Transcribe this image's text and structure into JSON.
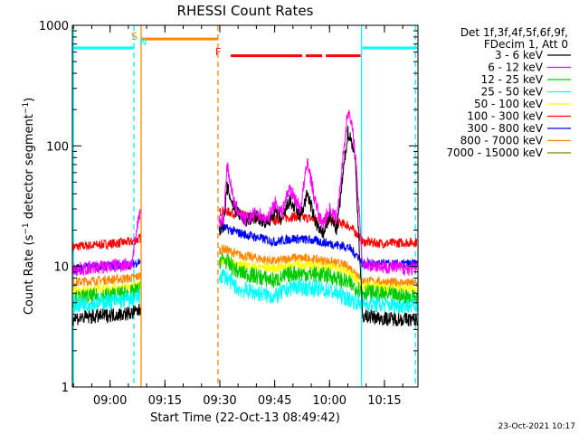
{
  "chart_data": {
    "type": "line",
    "title": "RHESSI Count Rates",
    "xlabel": "Start Time (22-Oct-13 08:49:42)",
    "ylabel": "Count Rate (s⁻¹ detector segment⁻¹)",
    "ylabel_parts": [
      "Count Rate (s",
      "−1",
      " detector segment",
      "−1",
      ")"
    ],
    "y_scale": "log",
    "ylim": [
      1,
      1000
    ],
    "xlim": [
      "08:49:42",
      "10:24:10"
    ],
    "x_ticks": [
      "09:00",
      "09:15",
      "09:30",
      "09:45",
      "10:00",
      "10:15"
    ],
    "y_ticks": [
      "1",
      "10",
      "100",
      "1000"
    ],
    "grid": false,
    "legend_position": "right",
    "legend_header": [
      "Det 1f,3f,4f,5f,6f,9f,",
      "FDecim 1, Att 0"
    ],
    "series": [
      {
        "name": "3 - 6 keV",
        "color": "#000000",
        "points": [
          [
            "08:50",
            3.7
          ],
          [
            "09:02",
            4.0
          ],
          [
            "09:06",
            4.1
          ],
          [
            "09:08",
            4.3
          ],
          [
            "09:31",
            22
          ],
          [
            "09:32",
            45
          ],
          [
            "09:34",
            30
          ],
          [
            "09:37",
            24
          ],
          [
            "09:40",
            26
          ],
          [
            "09:43",
            22
          ],
          [
            "09:45",
            29
          ],
          [
            "09:47",
            24
          ],
          [
            "09:49",
            35
          ],
          [
            "09:52",
            26
          ],
          [
            "09:54",
            40
          ],
          [
            "09:56",
            24
          ],
          [
            "09:58",
            18
          ],
          [
            "10:00",
            26
          ],
          [
            "10:02",
            20
          ],
          [
            "10:05",
            130
          ],
          [
            "10:06",
            110
          ],
          [
            "10:07",
            80
          ],
          [
            "10:09",
            3.9
          ],
          [
            "10:15",
            3.7
          ],
          [
            "10:25",
            3.6
          ]
        ]
      },
      {
        "name": "6 - 12 keV",
        "color": "#ff00ff",
        "points": [
          [
            "08:50",
            9.4
          ],
          [
            "09:06",
            10.5
          ],
          [
            "09:08",
            28
          ],
          [
            "09:31",
            24
          ],
          [
            "09:32",
            70
          ],
          [
            "09:34",
            32
          ],
          [
            "09:37",
            24
          ],
          [
            "09:40",
            28
          ],
          [
            "09:43",
            24
          ],
          [
            "09:45",
            34
          ],
          [
            "09:47",
            28
          ],
          [
            "09:49",
            45
          ],
          [
            "09:52",
            30
          ],
          [
            "09:54",
            75
          ],
          [
            "09:56",
            35
          ],
          [
            "09:58",
            22
          ],
          [
            "10:00",
            30
          ],
          [
            "10:02",
            25
          ],
          [
            "10:05",
            200
          ],
          [
            "10:06",
            150
          ],
          [
            "10:07",
            90
          ],
          [
            "10:09",
            10.5
          ],
          [
            "10:15",
            10
          ],
          [
            "10:25",
            9.4
          ]
        ]
      },
      {
        "name": "12 - 25 keV",
        "color": "#00cc00",
        "points": [
          [
            "08:50",
            5.4
          ],
          [
            "09:06",
            6.0
          ],
          [
            "09:08",
            6.4
          ],
          [
            "09:31",
            11.5
          ],
          [
            "09:35",
            9.0
          ],
          [
            "09:45",
            7.6
          ],
          [
            "09:50",
            8.8
          ],
          [
            "09:55",
            8.6
          ],
          [
            "10:00",
            8.4
          ],
          [
            "10:05",
            7.3
          ],
          [
            "10:08",
            6.5
          ],
          [
            "10:09",
            6.2
          ],
          [
            "10:15",
            5.8
          ],
          [
            "10:25",
            5.5
          ]
        ]
      },
      {
        "name": "25 - 50 keV",
        "color": "#00ffff",
        "points": [
          [
            "08:50",
            4.8
          ],
          [
            "09:06",
            5.3
          ],
          [
            "09:08",
            5.6
          ],
          [
            "09:31",
            8.5
          ],
          [
            "09:35",
            6.5
          ],
          [
            "09:45",
            5.6
          ],
          [
            "09:50",
            6.8
          ],
          [
            "09:55",
            6.6
          ],
          [
            "10:00",
            6.3
          ],
          [
            "10:05",
            5.4
          ],
          [
            "10:08",
            5.0
          ],
          [
            "10:09",
            4.9
          ],
          [
            "10:15",
            4.8
          ],
          [
            "10:25",
            4.7
          ]
        ]
      },
      {
        "name": "50 - 100 keV",
        "color": "#ffff00",
        "points": [
          [
            "08:50",
            6.3
          ],
          [
            "09:06",
            6.8
          ],
          [
            "09:08",
            7.0
          ],
          [
            "09:31",
            11.2
          ],
          [
            "09:35",
            10.4
          ],
          [
            "09:45",
            9.6
          ],
          [
            "09:50",
            10.4
          ],
          [
            "09:55",
            10.2
          ],
          [
            "10:00",
            10.0
          ],
          [
            "10:05",
            9.0
          ],
          [
            "10:08",
            7.4
          ],
          [
            "10:09",
            7.0
          ],
          [
            "10:15",
            6.7
          ],
          [
            "10:25",
            6.5
          ]
        ]
      },
      {
        "name": "100 - 300 keV",
        "color": "#ff0000",
        "points": [
          [
            "08:50",
            14.5
          ],
          [
            "09:06",
            16
          ],
          [
            "09:08",
            17
          ],
          [
            "09:31",
            29
          ],
          [
            "09:35",
            27
          ],
          [
            "09:45",
            24
          ],
          [
            "09:50",
            26
          ],
          [
            "09:55",
            25
          ],
          [
            "10:00",
            24
          ],
          [
            "10:05",
            22
          ],
          [
            "10:08",
            18
          ],
          [
            "10:09",
            16
          ],
          [
            "10:15",
            15.5
          ],
          [
            "10:25",
            16
          ]
        ]
      },
      {
        "name": "300 - 800 keV",
        "color": "#0000ff",
        "points": [
          [
            "08:50",
            9.6
          ],
          [
            "09:06",
            10.4
          ],
          [
            "09:08",
            11
          ],
          [
            "09:31",
            21
          ],
          [
            "09:35",
            19
          ],
          [
            "09:45",
            16
          ],
          [
            "09:50",
            17
          ],
          [
            "09:55",
            16.5
          ],
          [
            "10:00",
            15.5
          ],
          [
            "10:05",
            14.5
          ],
          [
            "10:08",
            12
          ],
          [
            "10:09",
            10.5
          ],
          [
            "10:15",
            10.4
          ],
          [
            "10:25",
            10.5
          ]
        ]
      },
      {
        "name": "800 - 7000 keV",
        "color": "#ff8800",
        "points": [
          [
            "08:50",
            7.4
          ],
          [
            "09:06",
            8.0
          ],
          [
            "09:08",
            8.3
          ],
          [
            "09:31",
            14
          ],
          [
            "09:35",
            12.5
          ],
          [
            "09:45",
            11
          ],
          [
            "09:50",
            11.8
          ],
          [
            "09:55",
            11.5
          ],
          [
            "10:00",
            11
          ],
          [
            "10:05",
            10
          ],
          [
            "10:08",
            8.5
          ],
          [
            "10:09",
            7.6
          ],
          [
            "10:15",
            7.4
          ],
          [
            "10:25",
            7.2
          ]
        ]
      },
      {
        "name": "7000 - 15000 keV",
        "color": "#808000",
        "points": []
      }
    ],
    "annotations": [
      {
        "label": "S",
        "color": "#ff8800",
        "time": "09:06"
      },
      {
        "label": "N",
        "color": "#00ffff",
        "time": "09:07"
      },
      {
        "label": "F",
        "color": "#ff0000",
        "time": "09:30"
      }
    ],
    "bars": [
      {
        "color": "#00ffff",
        "y": 650,
        "from": "08:49:42",
        "to": "09:06:30"
      },
      {
        "color": "#ff8800",
        "y": 770,
        "from": "09:08:30",
        "to": "09:29:30"
      },
      {
        "color": "#ff0000",
        "y": 560,
        "from": "09:33:00",
        "to": "09:52:30"
      },
      {
        "color": "#ff0000",
        "y": 560,
        "from": "09:53:30",
        "to": "09:58:00"
      },
      {
        "color": "#ff0000",
        "y": 560,
        "from": "09:59:00",
        "to": "10:08:30"
      },
      {
        "color": "#00ffff",
        "y": 650,
        "from": "10:09:00",
        "to": "10:24:10"
      }
    ],
    "vertical_lines": [
      {
        "time": "08:50:00",
        "color": "#00ffff",
        "style": "solid"
      },
      {
        "time": "09:06:30",
        "color": "#00ffff",
        "style": "dashed"
      },
      {
        "time": "09:08:30",
        "color": "#ff8800",
        "style": "solid"
      },
      {
        "time": "09:29:30",
        "color": "#ff8800",
        "style": "dashed"
      },
      {
        "time": "10:08:45",
        "color": "#00ffff",
        "style": "solid"
      },
      {
        "time": "10:23:30",
        "color": "#00ffff",
        "style": "dashed"
      }
    ]
  },
  "footer": {
    "timestamp": "23-Oct-2021 10:17"
  }
}
